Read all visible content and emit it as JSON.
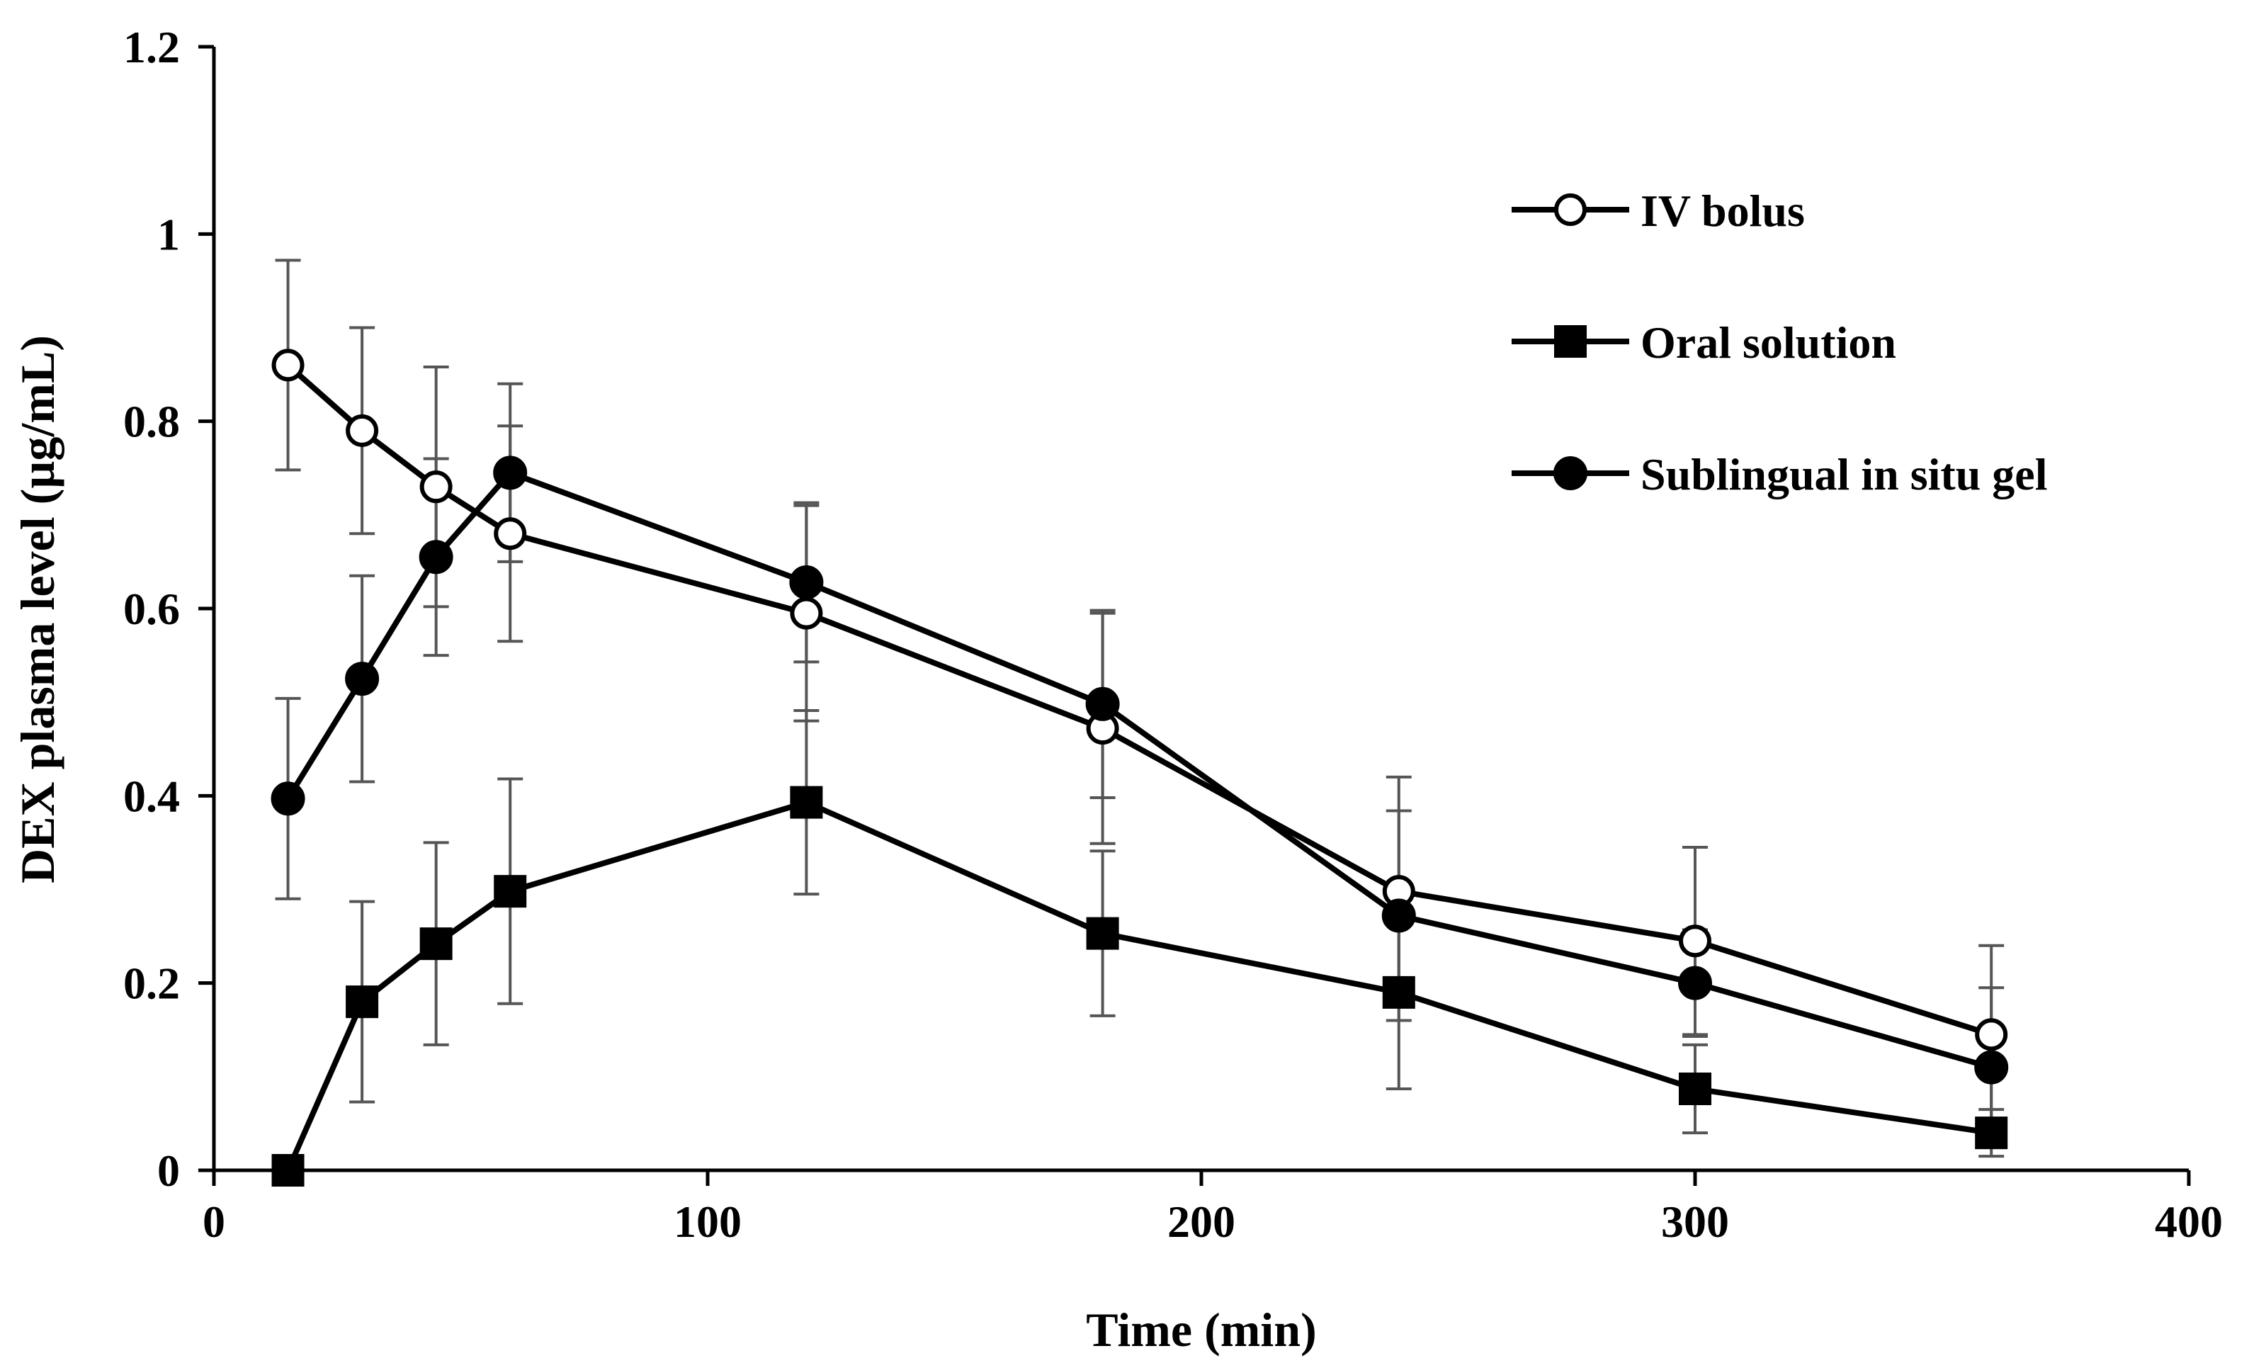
{
  "chart_data": {
    "type": "line",
    "title": "",
    "xlabel": "Time (min)",
    "ylabel": "DEX plasma level (µg/mL)",
    "xlim": [
      0,
      400
    ],
    "ylim": [
      0,
      1.2
    ],
    "x_ticks": [
      0,
      100,
      200,
      300,
      400
    ],
    "y_ticks": [
      0,
      0.2,
      0.4,
      0.6,
      0.8,
      1,
      1.2
    ],
    "x_tick_labels": [
      "0",
      "100",
      "200",
      "300",
      "400"
    ],
    "y_tick_labels": [
      "0",
      "0.2",
      "0.4",
      "0.6",
      "0.8",
      "1",
      "1.2"
    ],
    "grid": false,
    "legend_position": "top-right",
    "colors": {
      "line": "#000000",
      "errorbar": "#555555",
      "hollow_fill": "#ffffff"
    },
    "series": [
      {
        "name": "IV bolus",
        "marker": "circle-open",
        "x": [
          15,
          30,
          45,
          60,
          120,
          180,
          240,
          300,
          360
        ],
        "y": [
          0.86,
          0.79,
          0.73,
          0.68,
          0.595,
          0.472,
          0.298,
          0.245,
          0.145
        ],
        "err": [
          0.112,
          0.11,
          0.128,
          0.115,
          0.115,
          0.123,
          0.122,
          0.1,
          0.095
        ]
      },
      {
        "name": "Oral solution",
        "marker": "square-filled",
        "x": [
          15,
          30,
          45,
          60,
          120,
          180,
          240,
          300,
          360
        ],
        "y": [
          0.0,
          0.18,
          0.242,
          0.298,
          0.393,
          0.253,
          0.19,
          0.087,
          0.04
        ],
        "err": [
          0.0,
          0.107,
          0.108,
          0.12,
          0.098,
          0.088,
          0.103,
          0.047,
          0.025
        ]
      },
      {
        "name": "Sublingual in situ gel",
        "marker": "circle-filled",
        "x": [
          15,
          30,
          45,
          60,
          120,
          180,
          240,
          300,
          360
        ],
        "y": [
          0.397,
          0.525,
          0.655,
          0.745,
          0.628,
          0.498,
          0.272,
          0.2,
          0.11
        ],
        "err": [
          0.107,
          0.11,
          0.105,
          0.095,
          0.085,
          0.1,
          0.112,
          0.057,
          0.085
        ]
      }
    ]
  }
}
